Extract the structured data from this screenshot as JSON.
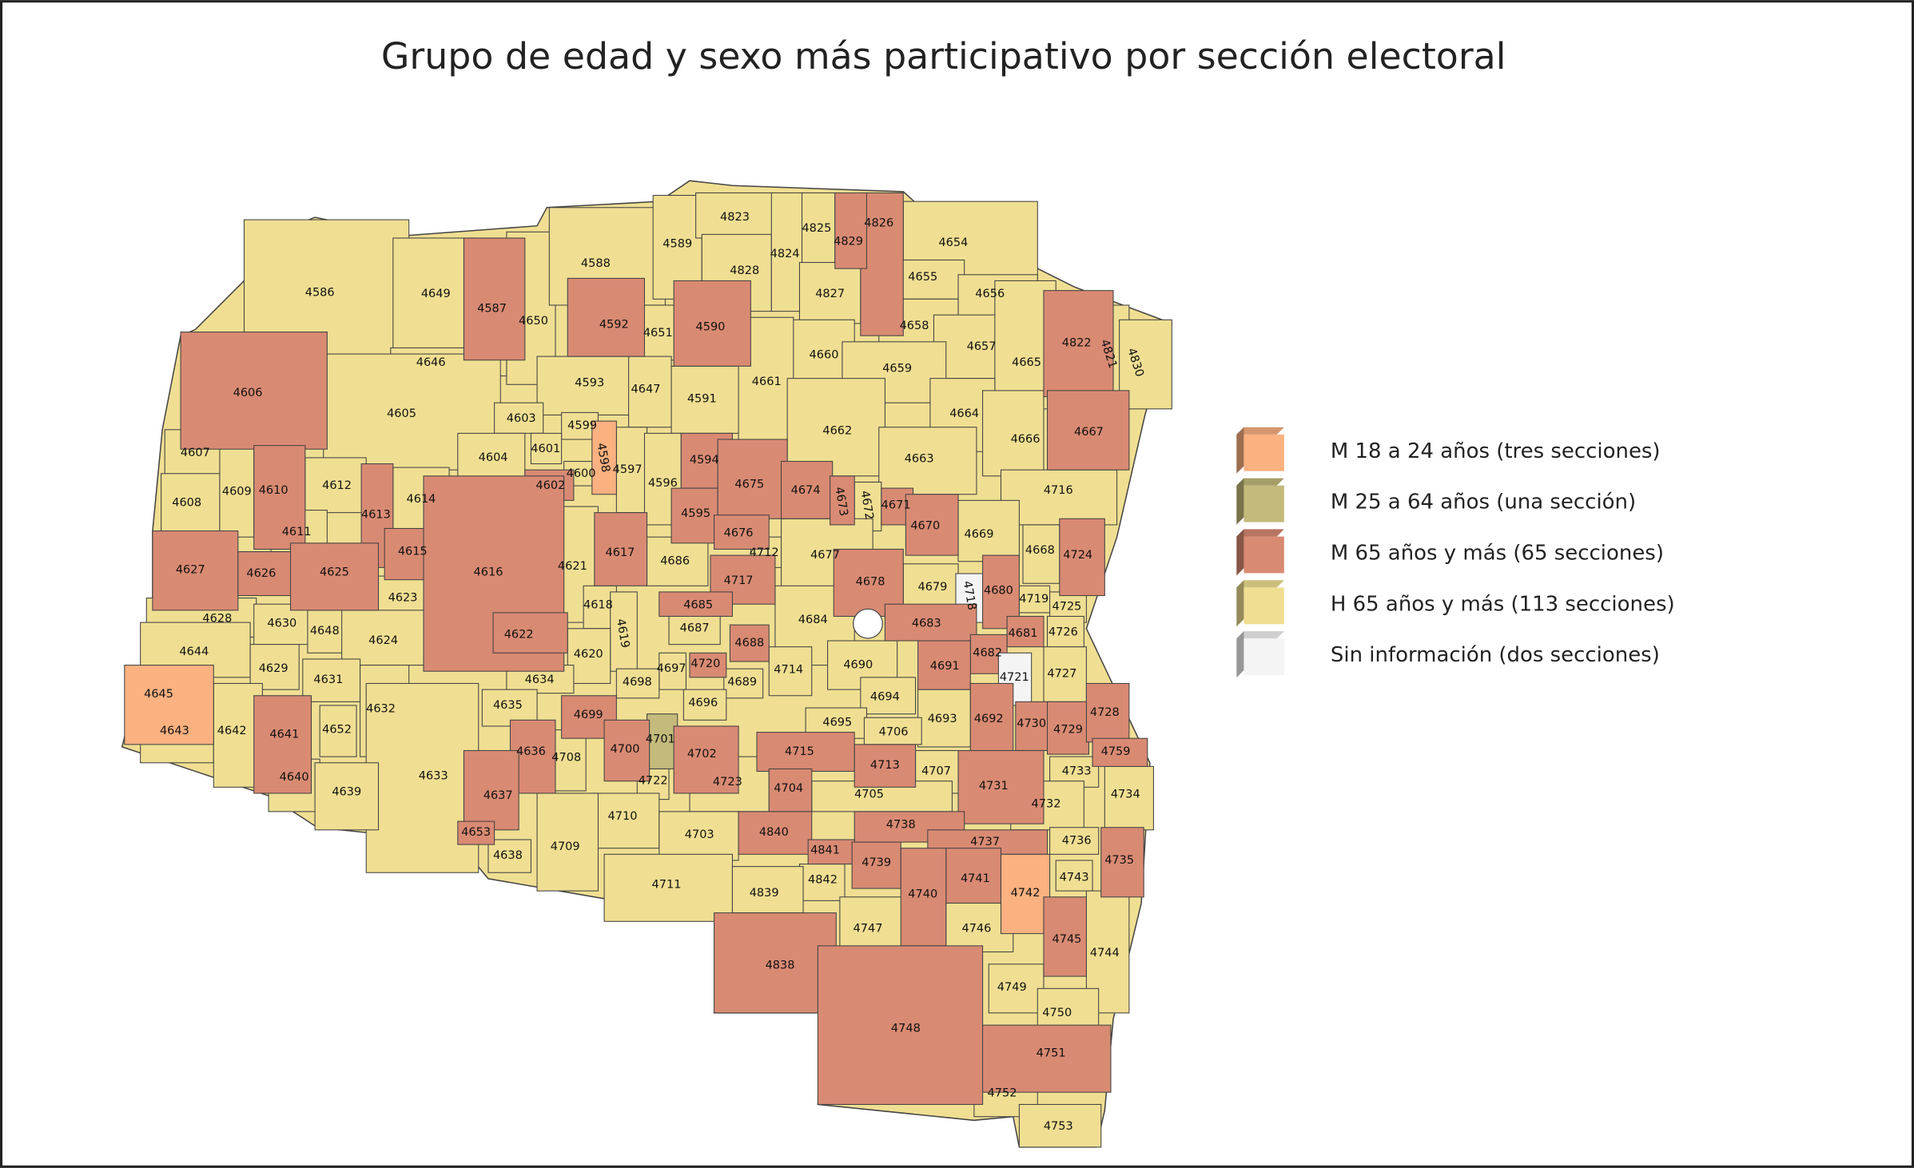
{
  "title": "Grupo de edad y sexo más participativo por sección electoral",
  "legend": [
    {
      "label": "M 18 a 24 años (tres secciones)",
      "color": "#fbb180"
    },
    {
      "label": "M 25 a 64 años (una sección)",
      "color": "#c3ba7b"
    },
    {
      "label": "M 65 años y más (65 secciones)",
      "color": "#d98a73"
    },
    {
      "label": "H 65 años y más (113 secciones)",
      "color": "#f0df92"
    },
    {
      "label": "Sin información (dos secciones)",
      "color": "#f4f4f5"
    }
  ],
  "sections": [
    {
      "label": "4586",
      "color": "#f0df92"
    },
    {
      "label": "4649",
      "color": "#f0df92"
    },
    {
      "label": "4587",
      "color": "#d98a73"
    },
    {
      "label": "4650",
      "color": "#f0df92"
    },
    {
      "label": "4588",
      "color": "#f0df92"
    },
    {
      "label": "4589",
      "color": "#f0df92"
    },
    {
      "label": "4592",
      "color": "#d98a73"
    },
    {
      "label": "4651",
      "color": "#f0df92"
    },
    {
      "label": "4590",
      "color": "#d98a73"
    },
    {
      "label": "4646",
      "color": "#f0df92"
    },
    {
      "label": "4593",
      "color": "#f0df92"
    },
    {
      "label": "4647",
      "color": "#f0df92"
    },
    {
      "label": "4591",
      "color": "#f0df92"
    },
    {
      "label": "4823",
      "color": "#f0df92"
    },
    {
      "label": "4828",
      "color": "#f0df92"
    },
    {
      "label": "4824",
      "color": "#f0df92"
    },
    {
      "label": "4825",
      "color": "#f0df92"
    },
    {
      "label": "4826",
      "color": "#d98a73"
    },
    {
      "label": "4829",
      "color": "#d98a73"
    },
    {
      "label": "4827",
      "color": "#f0df92"
    },
    {
      "label": "4654",
      "color": "#f0df92"
    },
    {
      "label": "4655",
      "color": "#f0df92"
    },
    {
      "label": "4656",
      "color": "#f0df92"
    },
    {
      "label": "4658",
      "color": "#f0df92"
    },
    {
      "label": "4657",
      "color": "#f0df92"
    },
    {
      "label": "4660",
      "color": "#f0df92"
    },
    {
      "label": "4659",
      "color": "#f0df92"
    },
    {
      "label": "4665",
      "color": "#f0df92"
    },
    {
      "label": "4822",
      "color": "#d98a73"
    },
    {
      "label": "4821",
      "color": "#f0df92"
    },
    {
      "label": "4830",
      "color": "#f0df92"
    },
    {
      "label": "4661",
      "color": "#f0df92"
    },
    {
      "label": "4664",
      "color": "#f0df92"
    },
    {
      "label": "4662",
      "color": "#f0df92"
    },
    {
      "label": "4666",
      "color": "#f0df92"
    },
    {
      "label": "4667",
      "color": "#d98a73"
    },
    {
      "label": "4663",
      "color": "#f0df92"
    },
    {
      "label": "4716",
      "color": "#f0df92"
    },
    {
      "label": "4606",
      "color": "#d98a73"
    },
    {
      "label": "4605",
      "color": "#f0df92"
    },
    {
      "label": "4603",
      "color": "#f0df92"
    },
    {
      "label": "4599",
      "color": "#f0df92"
    },
    {
      "label": "4598",
      "color": "#fbb180"
    },
    {
      "label": "4601",
      "color": "#f0df92"
    },
    {
      "label": "4604",
      "color": "#f0df92"
    },
    {
      "label": "4600",
      "color": "#f0df92"
    },
    {
      "label": "4602",
      "color": "#d98a73"
    },
    {
      "label": "4597",
      "color": "#f0df92"
    },
    {
      "label": "4596",
      "color": "#f0df92"
    },
    {
      "label": "4594",
      "color": "#d98a73"
    },
    {
      "label": "4595",
      "color": "#d98a73"
    },
    {
      "label": "4675",
      "color": "#d98a73"
    },
    {
      "label": "4674",
      "color": "#d98a73"
    },
    {
      "label": "4673",
      "color": "#d98a73"
    },
    {
      "label": "4672",
      "color": "#f0df92"
    },
    {
      "label": "4671",
      "color": "#d98a73"
    },
    {
      "label": "4670",
      "color": "#d98a73"
    },
    {
      "label": "4676",
      "color": "#d98a73"
    },
    {
      "label": "4712",
      "color": "#f0df92"
    },
    {
      "label": "4669",
      "color": "#f0df92"
    },
    {
      "label": "4668",
      "color": "#f0df92"
    },
    {
      "label": "4724",
      "color": "#d98a73"
    },
    {
      "label": "4607",
      "color": "#f0df92"
    },
    {
      "label": "4608",
      "color": "#f0df92"
    },
    {
      "label": "4609",
      "color": "#f0df92"
    },
    {
      "label": "4610",
      "color": "#d98a73"
    },
    {
      "label": "4612",
      "color": "#f0df92"
    },
    {
      "label": "4614",
      "color": "#f0df92"
    },
    {
      "label": "4613",
      "color": "#d98a73"
    },
    {
      "label": "4611",
      "color": "#f0df92"
    },
    {
      "label": "4615",
      "color": "#d98a73"
    },
    {
      "label": "4616",
      "color": "#d98a73"
    },
    {
      "label": "4621",
      "color": "#f0df92"
    },
    {
      "label": "4617",
      "color": "#d98a73"
    },
    {
      "label": "4686",
      "color": "#f0df92"
    },
    {
      "label": "4677",
      "color": "#f0df92"
    },
    {
      "label": "4717",
      "color": "#d98a73"
    },
    {
      "label": "4678",
      "color": "#d98a73"
    },
    {
      "label": "4679",
      "color": "#f0df92"
    },
    {
      "label": "4718",
      "color": "#f4f4f5"
    },
    {
      "label": "4680",
      "color": "#d98a73"
    },
    {
      "label": "4719",
      "color": "#f0df92"
    },
    {
      "label": "4725",
      "color": "#f0df92"
    },
    {
      "label": "4627",
      "color": "#d98a73"
    },
    {
      "label": "4626",
      "color": "#d98a73"
    },
    {
      "label": "4625",
      "color": "#d98a73"
    },
    {
      "label": "4623",
      "color": "#f0df92"
    },
    {
      "label": "4628",
      "color": "#f0df92"
    },
    {
      "label": "4630",
      "color": "#f0df92"
    },
    {
      "label": "4648",
      "color": "#f0df92"
    },
    {
      "label": "4624",
      "color": "#f0df92"
    },
    {
      "label": "4618",
      "color": "#f0df92"
    },
    {
      "label": "4619",
      "color": "#f0df92"
    },
    {
      "label": "4685",
      "color": "#d98a73"
    },
    {
      "label": "4687",
      "color": "#f0df92"
    },
    {
      "label": "4684",
      "color": "#f0df92"
    },
    {
      "label": "4683",
      "color": "#d98a73"
    },
    {
      "label": "4681",
      "color": "#d98a73"
    },
    {
      "label": "4726",
      "color": "#f0df92"
    },
    {
      "label": "4622",
      "color": "#d98a73"
    },
    {
      "label": "4620",
      "color": "#f0df92"
    },
    {
      "label": "4688",
      "color": "#d98a73"
    },
    {
      "label": "4682",
      "color": "#d98a73"
    },
    {
      "label": "4644",
      "color": "#f0df92"
    },
    {
      "label": "4629",
      "color": "#f0df92"
    },
    {
      "label": "4631",
      "color": "#f0df92"
    },
    {
      "label": "4690",
      "color": "#f0df92"
    },
    {
      "label": "4691",
      "color": "#d98a73"
    },
    {
      "label": "4721",
      "color": "#f4f4f5"
    },
    {
      "label": "4727",
      "color": "#f0df92"
    },
    {
      "label": "4697",
      "color": "#f0df92"
    },
    {
      "label": "4720",
      "color": "#d98a73"
    },
    {
      "label": "4714",
      "color": "#f0df92"
    },
    {
      "label": "4634",
      "color": "#f0df92"
    },
    {
      "label": "4698",
      "color": "#f0df92"
    },
    {
      "label": "4689",
      "color": "#f0df92"
    },
    {
      "label": "4645",
      "color": "#fbb180"
    },
    {
      "label": "4632",
      "color": "#f0df92"
    },
    {
      "label": "4694",
      "color": "#f0df92"
    },
    {
      "label": "4696",
      "color": "#f0df92"
    },
    {
      "label": "4635",
      "color": "#f0df92"
    },
    {
      "label": "4699",
      "color": "#d98a73"
    },
    {
      "label": "4693",
      "color": "#f0df92"
    },
    {
      "label": "4692",
      "color": "#d98a73"
    },
    {
      "label": "4730",
      "color": "#d98a73"
    },
    {
      "label": "4729",
      "color": "#d98a73"
    },
    {
      "label": "4728",
      "color": "#d98a73"
    },
    {
      "label": "4695",
      "color": "#f0df92"
    },
    {
      "label": "4706",
      "color": "#f0df92"
    },
    {
      "label": "4643",
      "color": "#f0df92"
    },
    {
      "label": "4642",
      "color": "#f0df92"
    },
    {
      "label": "4641",
      "color": "#d98a73"
    },
    {
      "label": "4652",
      "color": "#f0df92"
    },
    {
      "label": "4701",
      "color": "#c3ba7b"
    },
    {
      "label": "4700",
      "color": "#d98a73"
    },
    {
      "label": "4702",
      "color": "#d98a73"
    },
    {
      "label": "4636",
      "color": "#d98a73"
    },
    {
      "label": "4708",
      "color": "#f0df92"
    },
    {
      "label": "4633",
      "color": "#f0df92"
    },
    {
      "label": "4715",
      "color": "#d98a73"
    },
    {
      "label": "4759",
      "color": "#d98a73"
    },
    {
      "label": "4713",
      "color": "#d98a73"
    },
    {
      "label": "4707",
      "color": "#f0df92"
    },
    {
      "label": "4731",
      "color": "#d98a73"
    },
    {
      "label": "4733",
      "color": "#f0df92"
    },
    {
      "label": "4734",
      "color": "#f0df92"
    },
    {
      "label": "4723",
      "color": "#f0df92"
    },
    {
      "label": "4722",
      "color": "#f0df92"
    },
    {
      "label": "4704",
      "color": "#d98a73"
    },
    {
      "label": "4640",
      "color": "#f0df92"
    },
    {
      "label": "4639",
      "color": "#f0df92"
    },
    {
      "label": "4637",
      "color": "#d98a73"
    },
    {
      "label": "4705",
      "color": "#f0df92"
    },
    {
      "label": "4732",
      "color": "#f0df92"
    },
    {
      "label": "4710",
      "color": "#f0df92"
    },
    {
      "label": "4738",
      "color": "#d98a73"
    },
    {
      "label": "4840",
      "color": "#d98a73"
    },
    {
      "label": "4736",
      "color": "#f0df92"
    },
    {
      "label": "4703",
      "color": "#f0df92"
    },
    {
      "label": "4653",
      "color": "#d98a73"
    },
    {
      "label": "4841",
      "color": "#d98a73"
    },
    {
      "label": "4737",
      "color": "#d98a73"
    },
    {
      "label": "4709",
      "color": "#f0df92"
    },
    {
      "label": "4735",
      "color": "#d98a73"
    },
    {
      "label": "4638",
      "color": "#f0df92"
    },
    {
      "label": "4739",
      "color": "#d98a73"
    },
    {
      "label": "4741",
      "color": "#d98a73"
    },
    {
      "label": "4743",
      "color": "#f0df92"
    },
    {
      "label": "4842",
      "color": "#f0df92"
    },
    {
      "label": "4742",
      "color": "#fbb180"
    },
    {
      "label": "4711",
      "color": "#f0df92"
    },
    {
      "label": "4740",
      "color": "#d98a73"
    },
    {
      "label": "4839",
      "color": "#f0df92"
    },
    {
      "label": "4746",
      "color": "#f0df92"
    },
    {
      "label": "4747",
      "color": "#f0df92"
    },
    {
      "label": "4745",
      "color": "#d98a73"
    },
    {
      "label": "4744",
      "color": "#f0df92"
    },
    {
      "label": "4838",
      "color": "#d98a73"
    },
    {
      "label": "4749",
      "color": "#f0df92"
    },
    {
      "label": "4750",
      "color": "#f0df92"
    },
    {
      "label": "4748",
      "color": "#d98a73"
    },
    {
      "label": "4751",
      "color": "#d98a73"
    },
    {
      "label": "4752",
      "color": "#f0df92"
    },
    {
      "label": "4753",
      "color": "#f0df92"
    }
  ]
}
